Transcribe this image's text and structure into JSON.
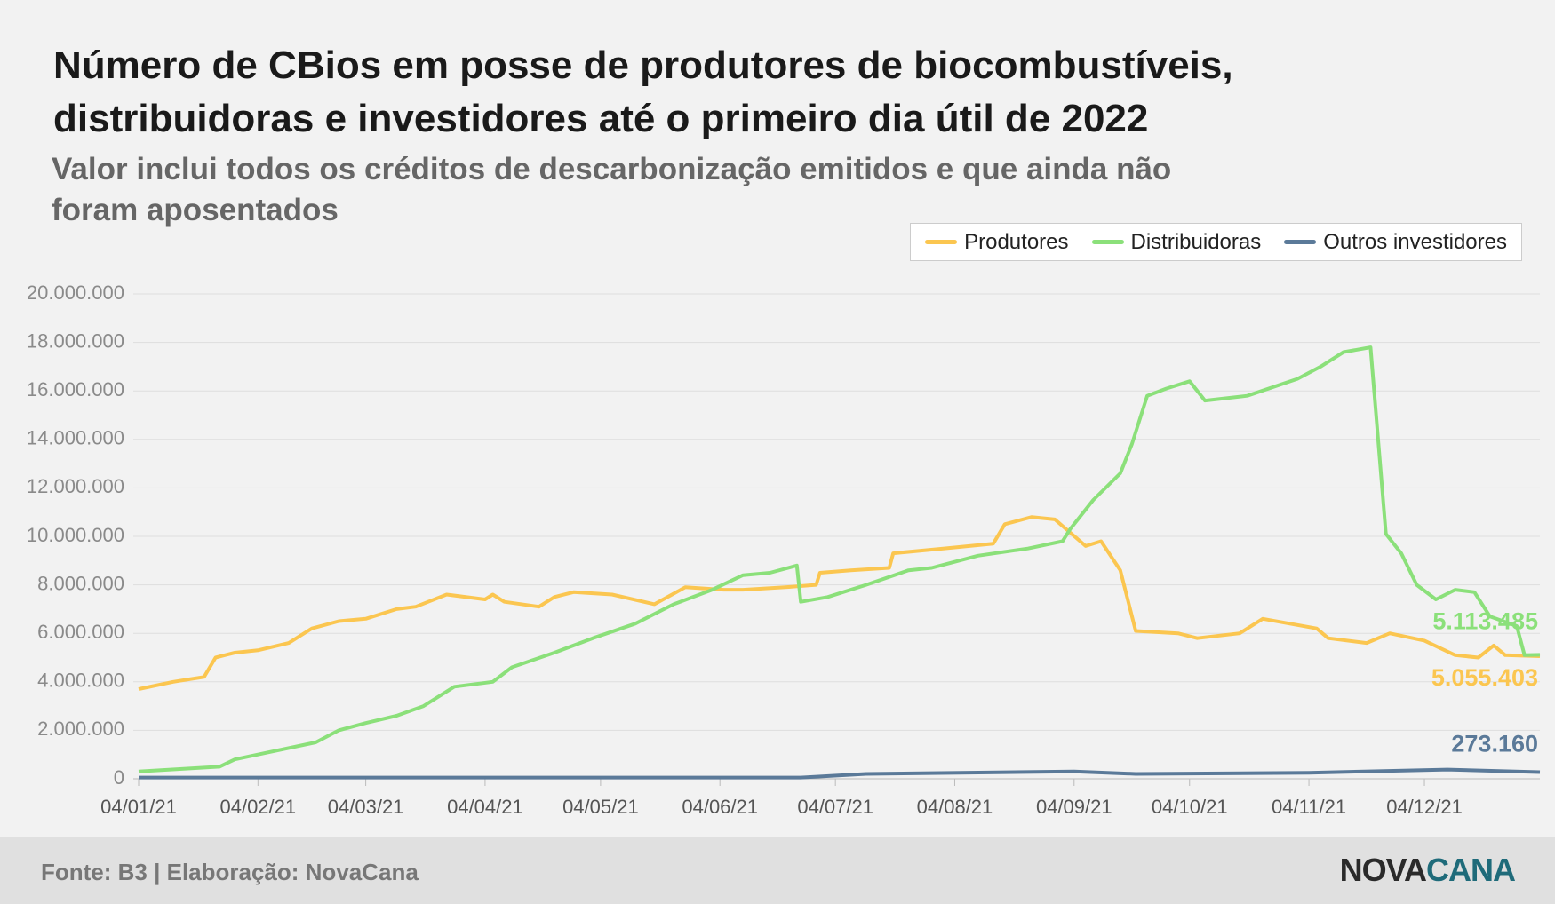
{
  "chart_data": {
    "type": "line",
    "title": "Número de CBios em posse de produtores de biocombustíveis, distribuidoras e investidores até o primeiro dia útil de 2022",
    "subtitle": "Valor inclui todos os créditos de descarbonização emitidos e que ainda não foram aposentados",
    "xlim": [
      "04/01/21",
      "03/01/22"
    ],
    "xticks": [
      "04/01/21",
      "04/02/21",
      "04/03/21",
      "04/04/21",
      "04/05/21",
      "04/06/21",
      "04/07/21",
      "04/08/21",
      "04/09/21",
      "04/10/21",
      "04/11/21",
      "04/12/21"
    ],
    "ylim": [
      0,
      20000000
    ],
    "yticks": [
      0,
      {
        "value": 2000000,
        "label": "2.000.000"
      },
      {
        "value": 4000000,
        "label": "4.000.000"
      },
      {
        "value": 6000000,
        "label": "6.000.000"
      },
      {
        "value": 8000000,
        "label": "8.000.000"
      },
      {
        "value": 10000000,
        "label": "10.000.000"
      },
      {
        "value": 12000000,
        "label": "12.000.000"
      },
      {
        "value": 14000000,
        "label": "14.000.000"
      },
      {
        "value": 16000000,
        "label": "16.000.000"
      },
      {
        "value": 18000000,
        "label": "18.000.000"
      },
      {
        "value": 20000000,
        "label": "20.000.000"
      }
    ],
    "grid": true,
    "legend": "top-right",
    "series": [
      {
        "name": "Produtores",
        "color": "#fbc650",
        "x": [
          "04/01/21",
          "13/01/21",
          "21/01/21",
          "24/01/21",
          "29/01/21",
          "04/02/21",
          "12/02/21",
          "18/02/21",
          "25/02/21",
          "04/03/21",
          "12/03/21",
          "17/03/21",
          "25/03/21",
          "04/04/21",
          "06/04/21",
          "09/04/21",
          "18/04/21",
          "22/04/21",
          "27/04/21",
          "07/05/21",
          "18/05/21",
          "26/05/21",
          "05/06/21",
          "10/06/21",
          "21/06/21",
          "29/06/21",
          "30/06/21",
          "08/07/21",
          "18/07/21",
          "19/07/21",
          "01/08/21",
          "14/08/21",
          "17/08/21",
          "24/08/21",
          "30/08/21",
          "07/09/21",
          "11/09/21",
          "16/09/21",
          "20/09/21",
          "01/10/21",
          "06/10/21",
          "17/10/21",
          "23/10/21",
          "06/11/21",
          "09/11/21",
          "19/11/21",
          "25/11/21",
          "04/12/21",
          "12/12/21",
          "18/12/21",
          "22/12/21",
          "25/12/21",
          "03/01/22"
        ],
        "values": [
          3700000,
          4000000,
          4200000,
          5000000,
          5200000,
          5300000,
          5600000,
          6200000,
          6500000,
          6600000,
          7000000,
          7100000,
          7600000,
          7400000,
          7600000,
          7300000,
          7100000,
          7500000,
          7700000,
          7600000,
          7200000,
          7900000,
          7800000,
          7800000,
          7900000,
          8000000,
          8500000,
          8600000,
          8700000,
          9300000,
          9500000,
          9700000,
          10500000,
          10800000,
          10700000,
          9600000,
          9800000,
          8600000,
          6100000,
          6000000,
          5800000,
          6000000,
          6600000,
          6200000,
          5800000,
          5600000,
          6000000,
          5700000,
          5100000,
          5000000,
          5500000,
          5100000,
          5055403
        ],
        "value_labels": [
          null,
          null,
          null,
          null,
          null,
          null,
          null,
          null,
          null,
          null,
          null,
          null,
          null,
          null,
          null,
          null,
          null,
          null,
          null,
          null,
          null,
          null,
          null,
          null,
          null,
          null,
          null,
          null,
          null,
          null,
          null,
          null,
          null,
          null,
          null,
          null,
          null,
          null,
          null,
          null,
          null,
          null,
          null,
          null,
          null,
          null,
          null,
          null,
          null,
          null,
          null,
          null,
          "5.055.403"
        ]
      },
      {
        "name": "Distribuidoras",
        "color": "#8be07a",
        "x": [
          "04/01/21",
          "25/01/21",
          "29/01/21",
          "04/02/21",
          "19/02/21",
          "25/02/21",
          "04/03/21",
          "12/03/21",
          "19/03/21",
          "27/03/21",
          "06/04/21",
          "11/04/21",
          "22/04/21",
          "02/05/21",
          "13/05/21",
          "23/05/21",
          "02/06/21",
          "10/06/21",
          "17/06/21",
          "24/06/21",
          "25/06/21",
          "02/07/21",
          "12/07/21",
          "23/07/21",
          "29/07/21",
          "10/08/21",
          "23/08/21",
          "01/09/21",
          "03/09/21",
          "09/09/21",
          "16/09/21",
          "19/09/21",
          "23/09/21",
          "28/09/21",
          "04/10/21",
          "08/10/21",
          "19/10/21",
          "01/11/21",
          "07/11/21",
          "13/11/21",
          "20/11/21",
          "24/11/21",
          "28/11/21",
          "02/12/21",
          "07/12/21",
          "12/12/21",
          "17/12/21",
          "21/12/21",
          "28/12/21",
          "30/12/21",
          "03/01/22"
        ],
        "values": [
          300000,
          500000,
          800000,
          1000000,
          1500000,
          2000000,
          2300000,
          2600000,
          3000000,
          3800000,
          4000000,
          4600000,
          5200000,
          5800000,
          6400000,
          7200000,
          7800000,
          8400000,
          8500000,
          8800000,
          7300000,
          7500000,
          8000000,
          8600000,
          8700000,
          9200000,
          9500000,
          9800000,
          10300000,
          11500000,
          12600000,
          13800000,
          15800000,
          16100000,
          16400000,
          15600000,
          15800000,
          16500000,
          17000000,
          17600000,
          17800000,
          10100000,
          9300000,
          8000000,
          7400000,
          7800000,
          7700000,
          6700000,
          6300000,
          5100000,
          5113485
        ],
        "value_labels": [
          null,
          null,
          null,
          null,
          null,
          null,
          null,
          null,
          null,
          null,
          null,
          null,
          null,
          null,
          null,
          null,
          null,
          null,
          null,
          null,
          null,
          null,
          null,
          null,
          null,
          null,
          null,
          null,
          null,
          null,
          null,
          null,
          null,
          null,
          null,
          null,
          null,
          null,
          null,
          null,
          null,
          null,
          null,
          null,
          null,
          null,
          null,
          null,
          null,
          null,
          "5.113.485"
        ]
      },
      {
        "name": "Outros investidores",
        "color": "#5b7a99",
        "x": [
          "04/01/21",
          "25/06/21",
          "12/07/21",
          "04/09/21",
          "20/09/21",
          "04/11/21",
          "10/12/21",
          "03/01/22"
        ],
        "values": [
          50000,
          50000,
          200000,
          300000,
          200000,
          250000,
          380000,
          273160
        ],
        "value_labels": [
          null,
          null,
          null,
          null,
          null,
          null,
          null,
          "273.160"
        ]
      }
    ]
  },
  "footer": {
    "source": "Fonte: B3 | Elaboração: NovaCana",
    "logo": [
      "NOVA",
      "CANA"
    ]
  }
}
